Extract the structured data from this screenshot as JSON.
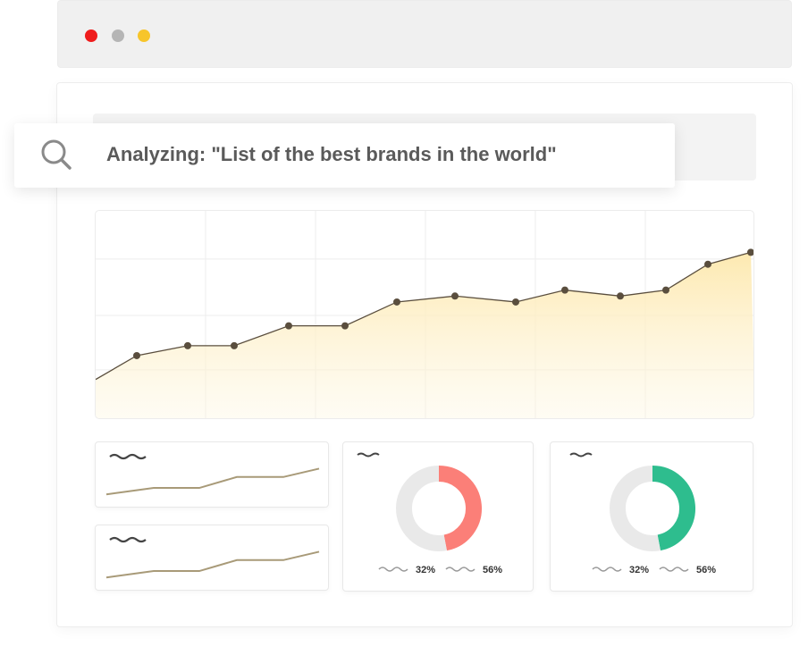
{
  "window": {
    "controls": [
      {
        "name": "close",
        "color": "#ef1c1c"
      },
      {
        "name": "minimize",
        "color": "#b5b5b5"
      },
      {
        "name": "maximize",
        "color": "#f7c52b"
      }
    ]
  },
  "search": {
    "icon": "search-icon",
    "text": "Analyzing: \"List of the best brands in the world\""
  },
  "colors": {
    "line": "#5a4e3e",
    "area_top": "#fde9b0",
    "sparkline": "#a89a78",
    "donut_track": "#e9e9e9",
    "donut_red": "#fb7f78",
    "donut_green": "#2ebd8e",
    "squiggle": "#444444",
    "squiggle_light": "#999999"
  },
  "chart_data": [
    {
      "type": "area",
      "x": [
        0,
        1,
        2,
        3,
        4,
        5,
        6,
        7,
        8,
        9,
        10,
        11,
        12,
        13
      ],
      "values": [
        15,
        27,
        32,
        32,
        42,
        42,
        54,
        57,
        54,
        60,
        57,
        60,
        73,
        79
      ],
      "ylim": [
        0,
        100
      ],
      "grid": true
    },
    {
      "type": "line",
      "values": [
        8,
        18,
        18,
        35,
        35,
        48
      ]
    },
    {
      "type": "line",
      "values": [
        8,
        18,
        18,
        35,
        35,
        48
      ]
    },
    {
      "type": "pie",
      "legend": [
        {
          "value": "32%"
        },
        {
          "value": "56%"
        }
      ],
      "slices": [
        {
          "value": 47,
          "color": "#fb7f78"
        },
        {
          "value": 53,
          "color": "#e9e9e9"
        }
      ]
    },
    {
      "type": "pie",
      "legend": [
        {
          "value": "32%"
        },
        {
          "value": "56%"
        }
      ],
      "slices": [
        {
          "value": 47,
          "color": "#2ebd8e"
        },
        {
          "value": 53,
          "color": "#e9e9e9"
        }
      ]
    }
  ]
}
